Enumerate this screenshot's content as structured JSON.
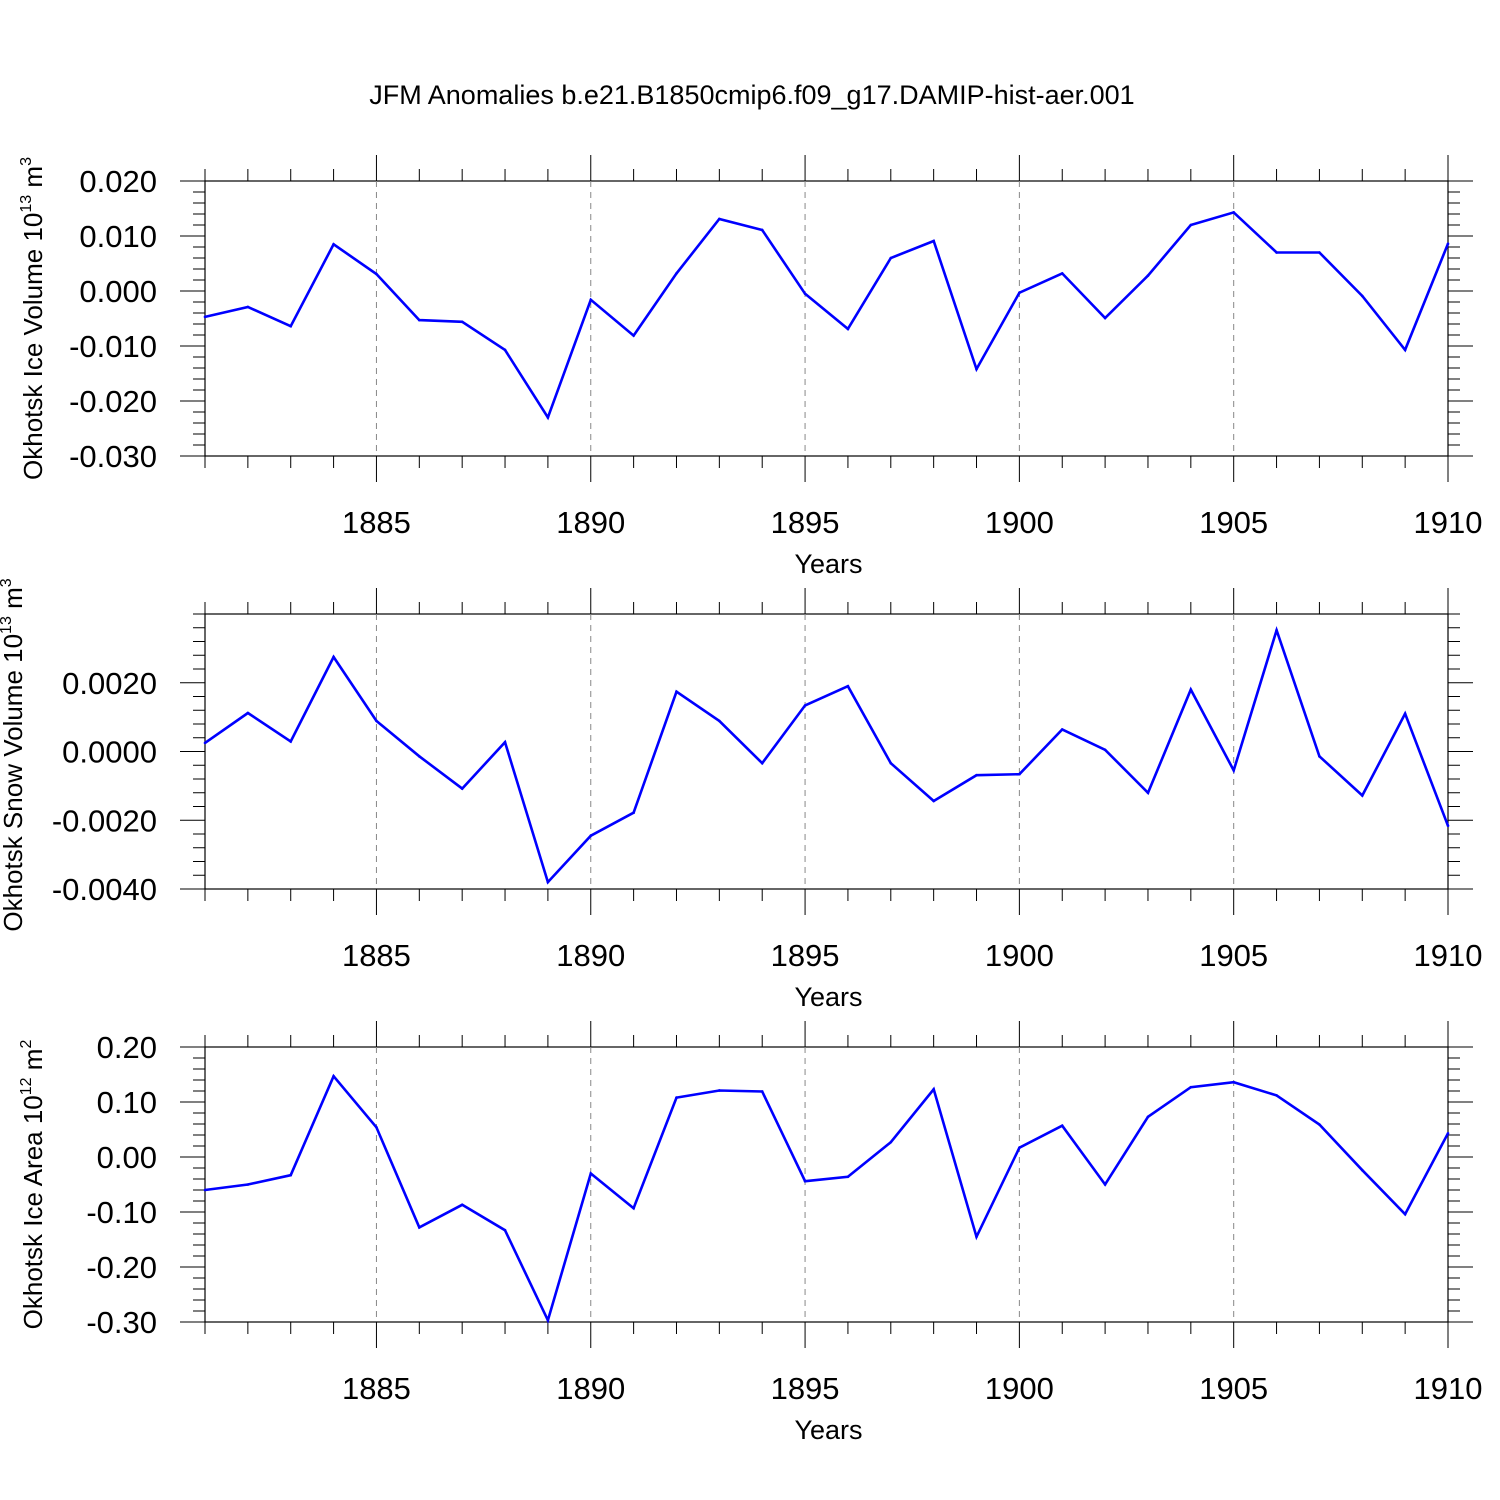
{
  "title": "JFM Anomalies b.e21.B1850cmip6.f09_g17.DAMIP-hist-aer.001",
  "colors": {
    "line": "#0000ff",
    "axes": "#000000",
    "grid": "#888888"
  },
  "chart_data": [
    {
      "type": "line",
      "ylabel": {
        "text": "Okhotsk Ice Volume 10",
        "exponent": "13",
        "unit": " m",
        "unit_exponent": "3"
      },
      "xlabel": "Years",
      "xlim": [
        1881,
        1910
      ],
      "ylim": [
        -0.03,
        0.02
      ],
      "yticks": [
        0.02,
        0.01,
        0.0,
        -0.01,
        -0.02,
        -0.03
      ],
      "ytick_labels": [
        "0.020",
        "0.010",
        "0.000",
        "-0.010",
        "-0.020",
        "-0.030"
      ],
      "xticks": [
        1885,
        1890,
        1895,
        1900,
        1905,
        1910
      ],
      "xtick_labels": [
        "1885",
        "1890",
        "1895",
        "1900",
        "1905",
        "1910"
      ],
      "grid": "vertical dashed at major x ticks",
      "x": [
        1881,
        1882,
        1883,
        1884,
        1885,
        1886,
        1887,
        1888,
        1889,
        1890,
        1891,
        1892,
        1893,
        1894,
        1895,
        1896,
        1897,
        1898,
        1899,
        1900,
        1901,
        1902,
        1903,
        1904,
        1905,
        1906,
        1907,
        1908,
        1909,
        1910
      ],
      "values": [
        -0.0047,
        -0.0029,
        -0.0064,
        0.0085,
        0.0031,
        -0.0053,
        -0.0056,
        -0.0107,
        -0.023,
        -0.0016,
        -0.0081,
        0.0032,
        0.0131,
        0.0111,
        -0.0005,
        -0.0069,
        0.006,
        0.0091,
        -0.0142,
        -0.0003,
        0.0032,
        -0.0049,
        0.0028,
        0.012,
        0.0143,
        0.007,
        0.007,
        -0.0009,
        -0.0107,
        0.0086
      ]
    },
    {
      "type": "line",
      "ylabel": {
        "text": "Okhotsk Snow Volume 10",
        "exponent": "13",
        "unit": " m",
        "unit_exponent": "3"
      },
      "xlabel": "Years",
      "xlim": [
        1881,
        1910
      ],
      "ylim": [
        -0.004,
        0.004
      ],
      "yticks": [
        0.002,
        0.0,
        -0.002,
        -0.004
      ],
      "ytick_labels": [
        "0.0020",
        "0.0000",
        "-0.0020",
        "-0.0040"
      ],
      "xticks": [
        1885,
        1890,
        1895,
        1900,
        1905,
        1910
      ],
      "xtick_labels": [
        "1885",
        "1890",
        "1895",
        "1900",
        "1905",
        "1910"
      ],
      "grid": "vertical dashed at major x ticks",
      "x": [
        1881,
        1882,
        1883,
        1884,
        1885,
        1886,
        1887,
        1888,
        1889,
        1890,
        1891,
        1892,
        1893,
        1894,
        1895,
        1896,
        1897,
        1898,
        1899,
        1900,
        1901,
        1902,
        1903,
        1904,
        1905,
        1906,
        1907,
        1908,
        1909,
        1910
      ],
      "values": [
        0.00025,
        0.00112,
        0.00029,
        0.00275,
        0.00089,
        -0.00014,
        -0.00108,
        0.00027,
        -0.0038,
        -0.00245,
        -0.00178,
        0.00174,
        0.00089,
        -0.00034,
        0.00134,
        0.0019,
        -0.00034,
        -0.00144,
        -0.00069,
        -0.00066,
        0.00064,
        5e-05,
        -0.0012,
        0.0018,
        -0.00055,
        0.00353,
        -0.00014,
        -0.00128,
        0.0011,
        -0.00216
      ]
    },
    {
      "type": "line",
      "ylabel": {
        "text": "Okhotsk Ice Area 10",
        "exponent": "12",
        "unit": " m",
        "unit_exponent": "2"
      },
      "xlabel": "Years",
      "xlim": [
        1881,
        1910
      ],
      "ylim": [
        -0.3,
        0.2
      ],
      "yticks": [
        0.2,
        0.1,
        0.0,
        -0.1,
        -0.2,
        -0.3
      ],
      "ytick_labels": [
        "0.20",
        "0.10",
        "0.00",
        "-0.10",
        "-0.20",
        "-0.30"
      ],
      "xticks": [
        1885,
        1890,
        1895,
        1900,
        1905,
        1910
      ],
      "xtick_labels": [
        "1885",
        "1890",
        "1895",
        "1900",
        "1905",
        "1910"
      ],
      "grid": "vertical dashed at major x ticks",
      "x": [
        1881,
        1882,
        1883,
        1884,
        1885,
        1886,
        1887,
        1888,
        1889,
        1890,
        1891,
        1892,
        1893,
        1894,
        1895,
        1896,
        1897,
        1898,
        1899,
        1900,
        1901,
        1902,
        1903,
        1904,
        1905,
        1906,
        1907,
        1908,
        1909,
        1910
      ],
      "values": [
        -0.06,
        -0.05,
        -0.033,
        0.147,
        0.054,
        -0.128,
        -0.087,
        -0.133,
        -0.297,
        -0.03,
        -0.093,
        0.108,
        0.121,
        0.119,
        -0.044,
        -0.036,
        0.027,
        0.123,
        -0.145,
        0.017,
        0.057,
        -0.05,
        0.073,
        0.127,
        0.136,
        0.112,
        0.059,
        -0.024,
        -0.104,
        0.043
      ]
    }
  ]
}
